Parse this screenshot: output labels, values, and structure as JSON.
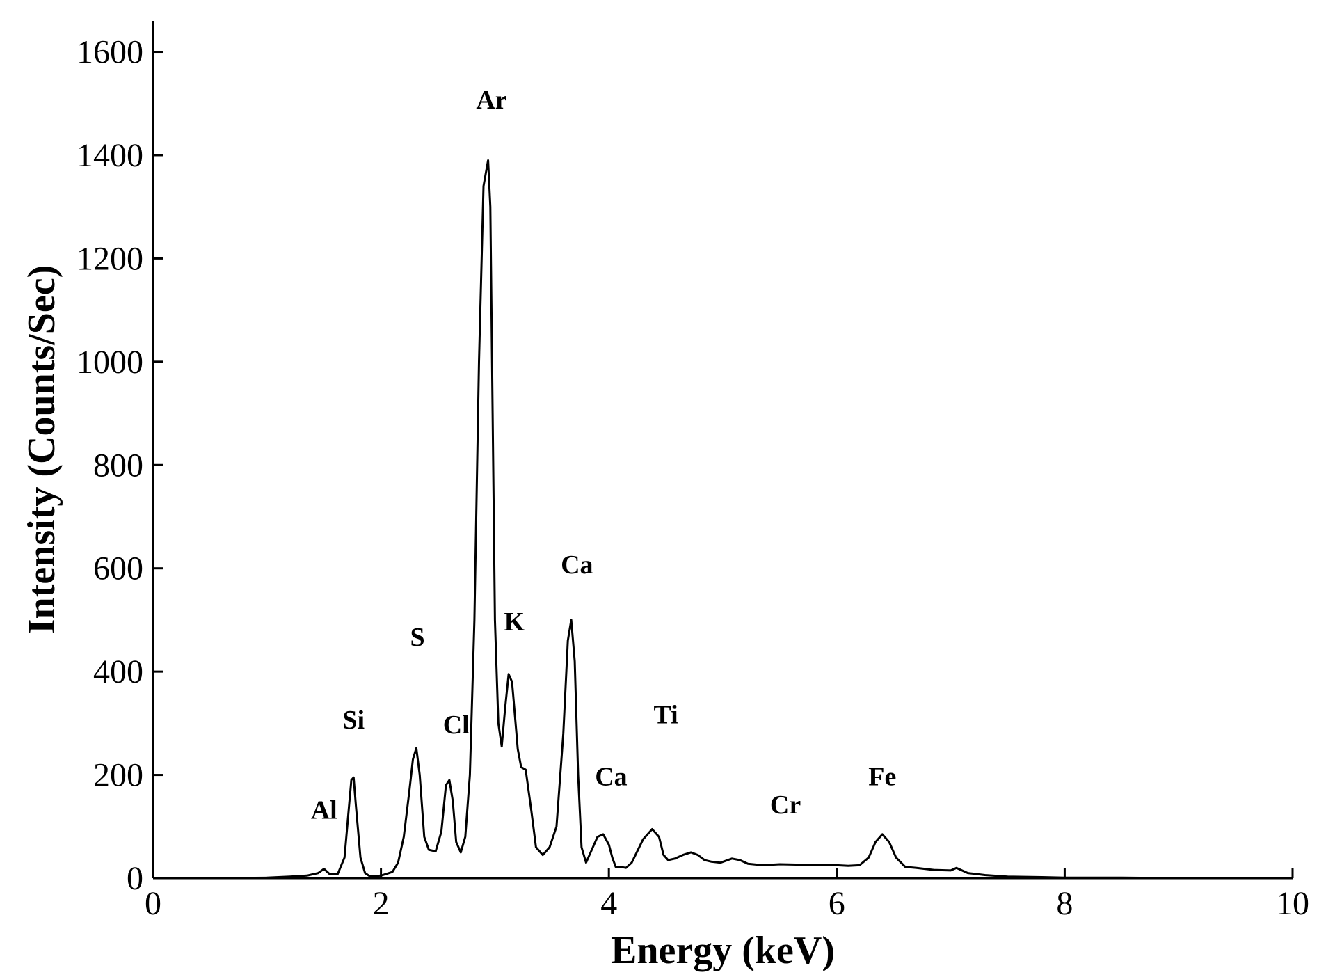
{
  "chart_data": {
    "type": "line",
    "title": "",
    "xlabel": "Energy (keV)",
    "ylabel": "Intensity (Counts/Sec)",
    "xlim": [
      0,
      10
    ],
    "ylim": [
      0,
      1660
    ],
    "xticks": [
      0,
      2,
      4,
      6,
      8,
      10
    ],
    "yticks": [
      0,
      200,
      400,
      600,
      800,
      1000,
      1200,
      1400,
      1600
    ],
    "grid": false,
    "legend": "none",
    "line_color": "#000000",
    "series": [
      {
        "x": [
          0,
          0.5,
          1.0,
          1.2,
          1.35,
          1.45,
          1.5,
          1.55,
          1.62,
          1.68,
          1.72,
          1.74,
          1.76,
          1.78,
          1.82,
          1.86,
          1.9,
          1.95,
          2.0,
          2.1,
          2.15,
          2.2,
          2.25,
          2.28,
          2.31,
          2.34,
          2.38,
          2.42,
          2.48,
          2.53,
          2.57,
          2.6,
          2.63,
          2.66,
          2.7,
          2.74,
          2.78,
          2.82,
          2.86,
          2.9,
          2.94,
          2.96,
          2.98,
          3.0,
          3.03,
          3.06,
          3.09,
          3.12,
          3.15,
          3.17,
          3.2,
          3.23,
          3.27,
          3.32,
          3.36,
          3.42,
          3.48,
          3.54,
          3.6,
          3.64,
          3.67,
          3.7,
          3.73,
          3.76,
          3.8,
          3.85,
          3.9,
          3.95,
          4.0,
          4.03,
          4.06,
          4.1,
          4.15,
          4.2,
          4.3,
          4.38,
          4.44,
          4.48,
          4.52,
          4.58,
          4.65,
          4.72,
          4.78,
          4.84,
          4.9,
          4.98,
          5.08,
          5.15,
          5.22,
          5.35,
          5.5,
          5.7,
          5.9,
          6.0,
          6.1,
          6.2,
          6.28,
          6.34,
          6.4,
          6.46,
          6.52,
          6.6,
          6.7,
          6.85,
          7.0,
          7.05,
          7.15,
          7.3,
          7.5,
          7.8,
          8.0,
          8.5,
          9.0,
          10.0
        ],
        "y": [
          0,
          0,
          1,
          3,
          5,
          10,
          18,
          8,
          8,
          40,
          140,
          190,
          195,
          140,
          40,
          10,
          4,
          4,
          5,
          12,
          30,
          80,
          170,
          230,
          252,
          200,
          80,
          55,
          52,
          90,
          180,
          190,
          150,
          70,
          50,
          80,
          200,
          500,
          1000,
          1340,
          1390,
          1300,
          900,
          500,
          300,
          255,
          330,
          395,
          380,
          330,
          250,
          215,
          210,
          130,
          60,
          45,
          60,
          100,
          280,
          460,
          500,
          420,
          200,
          60,
          30,
          55,
          80,
          85,
          65,
          40,
          22,
          22,
          20,
          30,
          75,
          95,
          80,
          45,
          35,
          38,
          45,
          50,
          45,
          35,
          32,
          30,
          38,
          35,
          28,
          25,
          27,
          26,
          25,
          25,
          24,
          25,
          40,
          70,
          85,
          70,
          40,
          22,
          20,
          16,
          15,
          20,
          10,
          6,
          3,
          2,
          1,
          1,
          0,
          0
        ]
      }
    ],
    "annotations": [
      {
        "text": "Al",
        "x": 1.5,
        "y": 115
      },
      {
        "text": "Si",
        "x": 1.76,
        "y": 290
      },
      {
        "text": "S",
        "x": 2.32,
        "y": 450
      },
      {
        "text": "Cl",
        "x": 2.66,
        "y": 280
      },
      {
        "text": "Ar",
        "x": 2.97,
        "y": 1490
      },
      {
        "text": "K",
        "x": 3.17,
        "y": 480
      },
      {
        "text": "Ca",
        "x": 3.72,
        "y": 590
      },
      {
        "text": "Ca",
        "x": 4.02,
        "y": 180
      },
      {
        "text": "Ti",
        "x": 4.5,
        "y": 300
      },
      {
        "text": "Cr",
        "x": 5.55,
        "y": 125
      },
      {
        "text": "Fe",
        "x": 6.4,
        "y": 180
      }
    ]
  }
}
